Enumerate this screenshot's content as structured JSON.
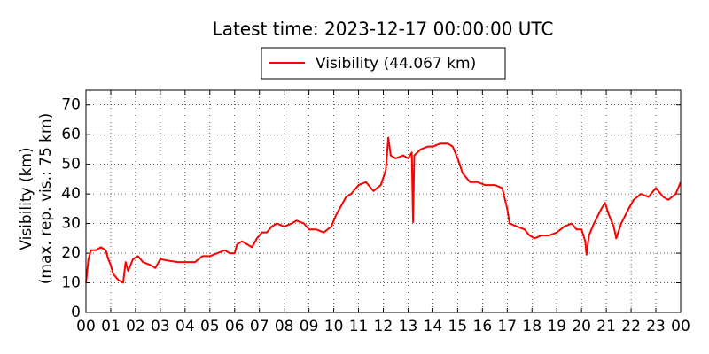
{
  "chart_data": {
    "type": "line",
    "title": "Latest time: 2023-12-17 00:00:00 UTC",
    "ylabel": [
      "Visibility (km)",
      "(max. rep. vis.: 75 km)"
    ],
    "xlim": [
      0,
      24
    ],
    "ylim": [
      0,
      75
    ],
    "xticks": [
      {
        "value": 0,
        "label": "00"
      },
      {
        "value": 1,
        "label": "01"
      },
      {
        "value": 2,
        "label": "02"
      },
      {
        "value": 3,
        "label": "03"
      },
      {
        "value": 4,
        "label": "04"
      },
      {
        "value": 5,
        "label": "05"
      },
      {
        "value": 6,
        "label": "06"
      },
      {
        "value": 7,
        "label": "07"
      },
      {
        "value": 8,
        "label": "08"
      },
      {
        "value": 9,
        "label": "09"
      },
      10,
      11,
      12,
      13,
      14,
      15,
      16,
      17,
      18,
      19,
      20,
      21,
      22,
      23,
      {
        "value": 24,
        "label": "00"
      }
    ],
    "yticks": [
      0,
      10,
      20,
      30,
      40,
      50,
      60,
      70
    ],
    "grid": true,
    "legend": "top",
    "x": [
      0,
      0.1,
      0.2,
      0.4,
      0.6,
      0.8,
      0.9,
      1.0,
      1.1,
      1.3,
      1.5,
      1.6,
      1.7,
      1.9,
      2.1,
      2.3,
      2.6,
      2.8,
      3.0,
      3.3,
      3.7,
      4.0,
      4.4,
      4.7,
      5.0,
      5.3,
      5.6,
      5.8,
      6.0,
      6.1,
      6.3,
      6.5,
      6.7,
      6.9,
      7.1,
      7.3,
      7.5,
      7.7,
      8.0,
      8.3,
      8.5,
      8.8,
      9.0,
      9.3,
      9.6,
      9.9,
      10.1,
      10.3,
      10.5,
      10.7,
      11.0,
      11.3,
      11.6,
      11.9,
      12.1,
      12.2,
      12.3,
      12.5,
      12.8,
      13.0,
      13.15,
      13.2,
      13.25,
      13.5,
      13.8,
      14.0,
      14.3,
      14.6,
      14.8,
      15.0,
      15.2,
      15.5,
      15.8,
      16.1,
      16.5,
      16.8,
      17.0,
      17.1,
      17.4,
      17.7,
      17.9,
      18.1,
      18.4,
      18.7,
      19.0,
      19.3,
      19.6,
      19.8,
      20.0,
      20.15,
      20.2,
      20.3,
      20.5,
      20.8,
      20.95,
      21.1,
      21.3,
      21.4,
      21.6,
      21.9,
      22.1,
      22.4,
      22.7,
      23.0,
      23.3,
      23.5,
      23.8,
      24
    ],
    "series": [
      {
        "name": "Visibility (44.067 km)",
        "color": "#ff0000",
        "values": [
          10,
          18,
          21,
          21,
          22,
          21,
          18,
          16,
          13,
          11,
          10,
          17,
          14,
          18,
          19,
          17,
          16,
          15,
          18,
          17.5,
          17,
          17,
          17,
          19,
          19,
          20,
          21,
          20,
          20,
          23,
          24,
          23,
          22,
          25,
          27,
          27,
          29,
          30,
          29,
          30,
          31,
          30,
          28,
          28,
          27,
          29,
          33,
          36,
          39,
          40,
          43,
          44,
          41,
          43,
          48,
          59,
          53,
          52,
          53,
          52,
          54,
          30.5,
          53,
          55,
          56,
          56,
          57,
          57,
          56,
          52,
          47,
          44,
          44,
          43,
          43,
          42,
          35,
          30,
          29,
          28,
          26,
          25,
          26,
          26,
          27,
          29,
          30,
          28,
          28,
          24,
          19.5,
          26,
          30,
          35,
          37,
          33,
          29,
          25,
          30,
          35,
          38,
          40,
          39,
          42,
          39,
          38,
          40,
          44
        ]
      }
    ]
  }
}
